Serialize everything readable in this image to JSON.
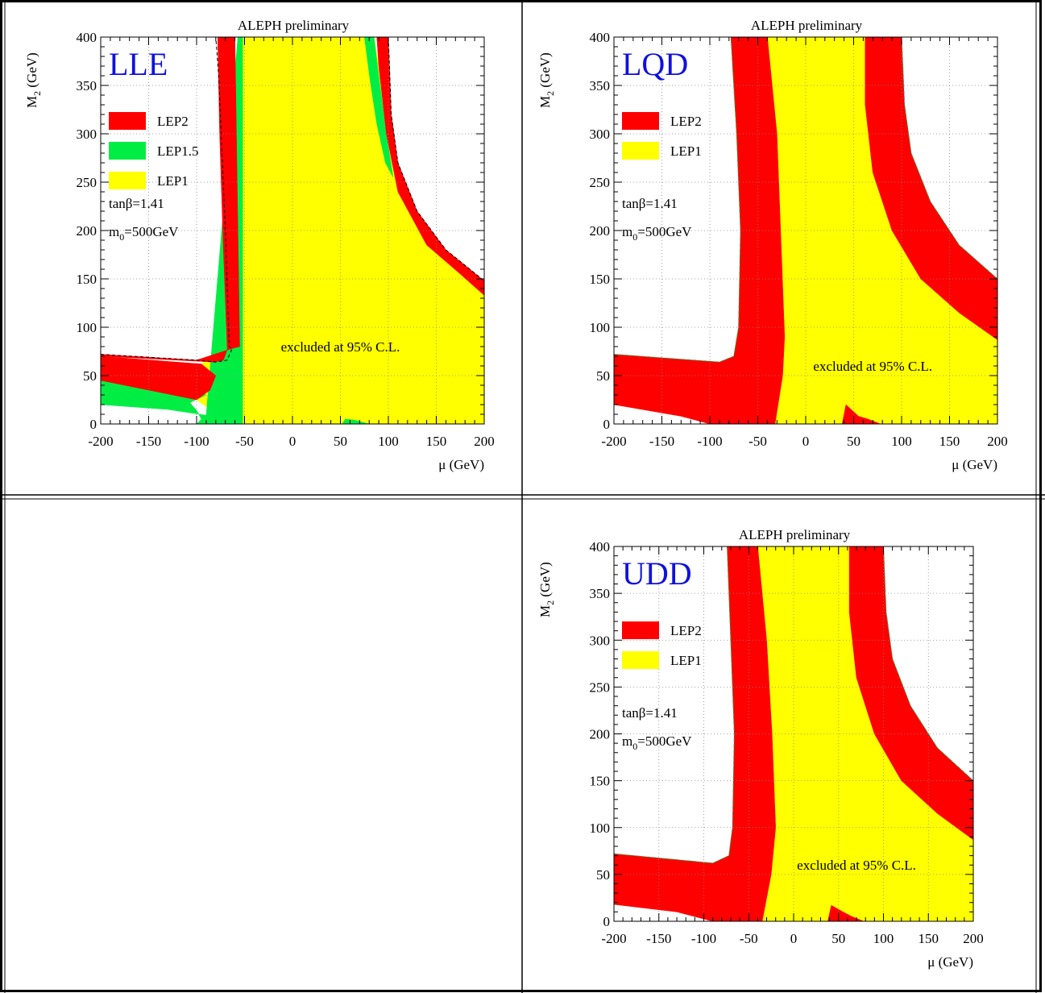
{
  "panels": [
    {
      "title": "ALEPH preliminary",
      "label": "LLE",
      "legend": [
        "LEP2",
        "LEP1.5",
        "LEP1"
      ],
      "params": {
        "tan": "tanβ=1.41",
        "m0_pre": "m",
        "m0_sub": "0",
        "m0_post": "=500GeV"
      },
      "annotation": "excluded at 95% C.L."
    },
    {
      "title": "ALEPH preliminary",
      "label": "LQD",
      "legend": [
        "LEP2",
        "LEP1"
      ],
      "params": {
        "tan": "tanβ=1.41",
        "m0_pre": "m",
        "m0_sub": "0",
        "m0_post": "=500GeV"
      },
      "annotation": "excluded at 95% C.L."
    },
    {
      "title": "ALEPH preliminary",
      "label": "UDD",
      "legend": [
        "LEP2",
        "LEP1"
      ],
      "params": {
        "tan": "tanβ=1.41",
        "m0_pre": "m",
        "m0_sub": "0",
        "m0_post": "=500GeV"
      },
      "annotation": "excluded at 95% C.L."
    }
  ],
  "axes": {
    "xlabel": "μ (GeV)",
    "ylabel_pre": "M",
    "ylabel_sub": "2",
    "ylabel_post": " (GeV)",
    "xticks": [
      "-200",
      "-150",
      "-100",
      "-50",
      "0",
      "50",
      "100",
      "150",
      "200"
    ],
    "yticks": [
      "0",
      "50",
      "100",
      "150",
      "200",
      "250",
      "300",
      "350",
      "400"
    ]
  },
  "colors": {
    "LEP2": "#ff0000",
    "LEP1.5": "#00ee44",
    "LEP1": "#ffff00",
    "label": "#1010e0",
    "grid": "#888888"
  },
  "chart_data": [
    {
      "type": "area",
      "title": "ALEPH preliminary",
      "xlabel": "μ (GeV)",
      "ylabel": "M2 (GeV)",
      "xlim": [
        -200,
        200
      ],
      "ylim": [
        0,
        400
      ],
      "grid": true,
      "legend_position": "left",
      "series": [
        {
          "name": "LEP1",
          "regions": [
            [
              [
                -52,
                400
              ],
              [
                85,
                400
              ],
              [
                90,
                370
              ],
              [
                98,
                300
              ],
              [
                110,
                240
              ],
              [
                140,
                185
              ],
              [
                175,
                155
              ],
              [
                200,
                133
              ],
              [
                200,
                0
              ],
              [
                -52,
                0
              ],
              [
                -55,
                5
              ],
              [
                -90,
                18
              ],
              [
                -100,
                25
              ],
              [
                -86,
                35
              ],
              [
                -80,
                50
              ],
              [
                -95,
                62
              ],
              [
                -85,
                70
              ],
              [
                -63,
                80
              ],
              [
                -55,
                80
              ]
            ]
          ]
        },
        {
          "name": "LEP1.5",
          "regions": [
            [
              [
                -57,
                400
              ],
              [
                -52,
                400
              ],
              [
                -52,
                0
              ],
              [
                -55,
                0
              ],
              [
                -100,
                0
              ],
              [
                -95,
                5
              ],
              [
                -100,
                14
              ],
              [
                -107,
                22
              ],
              [
                -90,
                30
              ],
              [
                -200,
                45
              ],
              [
                -200,
                20
              ],
              [
                -130,
                15
              ],
              [
                -90,
                9
              ]
            ],
            [
              [
                75,
                400
              ],
              [
                85,
                400
              ],
              [
                90,
                360
              ],
              [
                98,
                300
              ],
              [
                105,
                255
              ],
              [
                97,
                270
              ],
              [
                88,
                310
              ],
              [
                81,
                355
              ]
            ],
            [
              [
                52,
                0
              ],
              [
                55,
                5
              ],
              [
                65,
                4
              ],
              [
                80,
                0
              ]
            ]
          ]
        },
        {
          "name": "LEP2",
          "regions": [
            [
              [
                -200,
                72
              ],
              [
                -100,
                66
              ],
              [
                -63,
                78
              ],
              [
                -55,
                80
              ],
              [
                -60,
                400
              ],
              [
                -78,
                400
              ],
              [
                -76,
                300
              ],
              [
                -72,
                180
              ],
              [
                -68,
                77
              ],
              [
                -72,
                66
              ],
              [
                -82,
                64
              ],
              [
                -200,
                70
              ]
            ],
            [
              [
                -200,
                70
              ],
              [
                -95,
                62
              ],
              [
                -80,
                50
              ],
              [
                -86,
                35
              ],
              [
                -100,
                25
              ],
              [
                -200,
                45
              ]
            ],
            [
              [
                88,
                400
              ],
              [
                100,
                400
              ],
              [
                103,
                320
              ],
              [
                110,
                270
              ],
              [
                130,
                220
              ],
              [
                160,
                180
              ],
              [
                200,
                148
              ],
              [
                200,
                133
              ],
              [
                175,
                155
              ],
              [
                140,
                185
              ],
              [
                110,
                240
              ],
              [
                98,
                300
              ],
              [
                90,
                370
              ]
            ]
          ]
        }
      ],
      "boundary": [
        [
          -200,
          72
        ],
        [
          -100,
          66
        ],
        [
          -80,
          64
        ],
        [
          -68,
          66
        ],
        [
          -63,
          78
        ],
        [
          -66,
          80
        ],
        [
          -70,
          200
        ],
        [
          -77,
          360
        ],
        [
          -80,
          400
        ],
        [
          100,
          400
        ],
        [
          103,
          320
        ],
        [
          110,
          270
        ],
        [
          130,
          220
        ],
        [
          160,
          180
        ],
        [
          200,
          148
        ]
      ]
    },
    {
      "type": "area",
      "title": "ALEPH preliminary",
      "xlabel": "μ (GeV)",
      "ylabel": "M2 (GeV)",
      "xlim": [
        -200,
        200
      ],
      "ylim": [
        0,
        400
      ],
      "grid": true,
      "legend_position": "left",
      "series": [
        {
          "name": "LEP1",
          "regions": [
            [
              [
                -40,
                400
              ],
              [
                62,
                400
              ],
              [
                62,
                330
              ],
              [
                70,
                260
              ],
              [
                90,
                200
              ],
              [
                120,
                150
              ],
              [
                160,
                115
              ],
              [
                200,
                87
              ],
              [
                200,
                0
              ],
              [
                78,
                0
              ],
              [
                45,
                0
              ],
              [
                38,
                0
              ],
              [
                -32,
                0
              ],
              [
                -24,
                50
              ],
              [
                -22,
                90
              ],
              [
                -30,
                300
              ]
            ]
          ]
        },
        {
          "name": "LEP2",
          "regions": [
            [
              [
                -200,
                72
              ],
              [
                -90,
                64
              ],
              [
                -75,
                70
              ],
              [
                -70,
                100
              ],
              [
                -68,
                200
              ],
              [
                -72,
                300
              ],
              [
                -78,
                400
              ],
              [
                -40,
                400
              ],
              [
                -30,
                300
              ],
              [
                -22,
                90
              ],
              [
                -24,
                50
              ],
              [
                -32,
                0
              ],
              [
                -100,
                0
              ],
              [
                -130,
                8
              ],
              [
                -200,
                20
              ]
            ],
            [
              [
                62,
                400
              ],
              [
                100,
                400
              ],
              [
                103,
                330
              ],
              [
                110,
                280
              ],
              [
                130,
                230
              ],
              [
                160,
                185
              ],
              [
                200,
                150
              ],
              [
                200,
                87
              ],
              [
                160,
                115
              ],
              [
                120,
                150
              ],
              [
                90,
                200
              ],
              [
                70,
                260
              ],
              [
                62,
                330
              ]
            ],
            [
              [
                38,
                0
              ],
              [
                42,
                20
              ],
              [
                55,
                8
              ],
              [
                65,
                5
              ],
              [
                78,
                0
              ]
            ]
          ]
        }
      ],
      "boundary": [
        [
          -200,
          72
        ],
        [
          -90,
          64
        ],
        [
          -75,
          70
        ],
        [
          -70,
          100
        ],
        [
          -68,
          200
        ],
        [
          -72,
          300
        ],
        [
          -78,
          400
        ],
        [
          100,
          400
        ],
        [
          103,
          330
        ],
        [
          110,
          280
        ],
        [
          130,
          230
        ],
        [
          160,
          185
        ],
        [
          200,
          150
        ]
      ]
    },
    {
      "type": "area",
      "title": "ALEPH preliminary",
      "xlabel": "μ (GeV)",
      "ylabel": "M2 (GeV)",
      "xlim": [
        -200,
        200
      ],
      "ylim": [
        0,
        400
      ],
      "grid": true,
      "legend_position": "left",
      "series": [
        {
          "name": "LEP1",
          "regions": [
            [
              [
                -40,
                400
              ],
              [
                62,
                400
              ],
              [
                62,
                330
              ],
              [
                70,
                260
              ],
              [
                90,
                200
              ],
              [
                120,
                150
              ],
              [
                160,
                115
              ],
              [
                200,
                87
              ],
              [
                200,
                0
              ],
              [
                78,
                0
              ],
              [
                45,
                0
              ],
              [
                38,
                0
              ],
              [
                -35,
                0
              ],
              [
                -25,
                50
              ],
              [
                -20,
                100
              ],
              [
                -24,
                200
              ],
              [
                -30,
                300
              ]
            ]
          ]
        },
        {
          "name": "LEP2",
          "regions": [
            [
              [
                -200,
                72
              ],
              [
                -90,
                62
              ],
              [
                -72,
                70
              ],
              [
                -68,
                100
              ],
              [
                -66,
                200
              ],
              [
                -70,
                300
              ],
              [
                -74,
                400
              ],
              [
                -40,
                400
              ],
              [
                -30,
                300
              ],
              [
                -24,
                200
              ],
              [
                -20,
                100
              ],
              [
                -25,
                50
              ],
              [
                -35,
                0
              ],
              [
                -90,
                0
              ],
              [
                -130,
                10
              ],
              [
                -200,
                18
              ]
            ],
            [
              [
                62,
                400
              ],
              [
                100,
                400
              ],
              [
                103,
                330
              ],
              [
                110,
                280
              ],
              [
                130,
                230
              ],
              [
                160,
                185
              ],
              [
                200,
                150
              ],
              [
                200,
                87
              ],
              [
                160,
                115
              ],
              [
                120,
                150
              ],
              [
                90,
                200
              ],
              [
                70,
                260
              ],
              [
                62,
                330
              ]
            ],
            [
              [
                38,
                0
              ],
              [
                42,
                17
              ],
              [
                55,
                10
              ],
              [
                65,
                5
              ],
              [
                78,
                0
              ]
            ]
          ]
        }
      ],
      "boundary": [
        [
          -200,
          72
        ],
        [
          -90,
          62
        ],
        [
          -72,
          70
        ],
        [
          -68,
          100
        ],
        [
          -66,
          200
        ],
        [
          -70,
          300
        ],
        [
          -74,
          400
        ],
        [
          100,
          400
        ],
        [
          103,
          330
        ],
        [
          110,
          280
        ],
        [
          130,
          230
        ],
        [
          160,
          185
        ],
        [
          200,
          150
        ]
      ]
    }
  ]
}
